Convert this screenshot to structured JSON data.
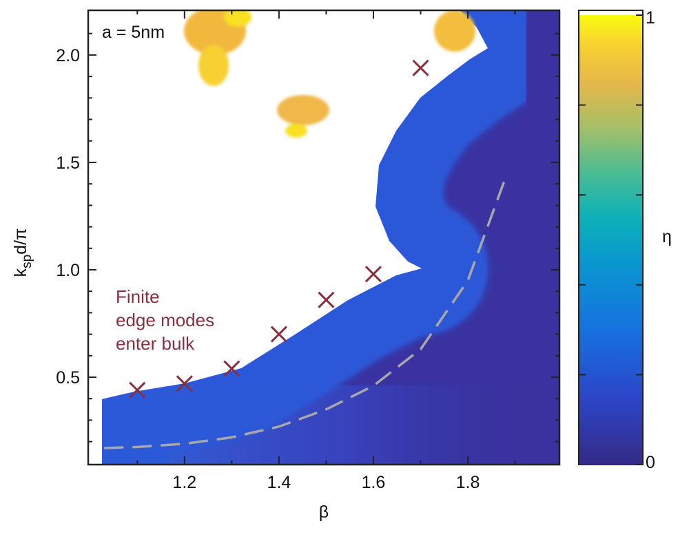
{
  "chart_data": {
    "type": "heatmap",
    "xlabel": "β",
    "ylabel": [
      "k",
      "sp",
      "d/π"
    ],
    "xlim": [
      0.996,
      1.994
    ],
    "ylim": [
      0.093,
      2.208
    ],
    "xticks": [
      1.2,
      1.4,
      1.6,
      1.8
    ],
    "xminorticks": [
      1.1,
      1.3,
      1.5,
      1.7,
      1.9
    ],
    "yticks": [
      0.5,
      1.0,
      1.5,
      2.0
    ],
    "yminorticks": [
      0.2,
      0.3,
      0.4,
      0.6,
      0.7,
      0.8,
      0.9,
      1.1,
      1.2,
      1.3,
      1.4,
      1.6,
      1.7,
      1.8,
      1.9,
      2.1
    ],
    "colorbar_label": "η",
    "clim": [
      0,
      1
    ],
    "cticks": [
      0,
      1
    ],
    "cminorticks": [
      0.2,
      0.4,
      0.6,
      0.8
    ],
    "annotations": [
      {
        "text": "a = 5nm"
      },
      {
        "lines": [
          "Finite",
          "edge modes",
          "enter bulk"
        ],
        "color": "#8a2e3e"
      }
    ],
    "series": [
      {
        "kind": "markers",
        "color": "#8a2e3e",
        "x": [
          1.1,
          1.2,
          1.3,
          1.4,
          1.5,
          1.6,
          1.7
        ],
        "values": [
          0.44,
          0.47,
          0.54,
          0.7,
          0.86,
          0.98,
          1.94
        ]
      },
      {
        "kind": "dashed-line",
        "color": "#a8a8a8",
        "x": [
          1.03,
          1.1,
          1.2,
          1.3,
          1.4,
          1.5,
          1.6,
          1.7,
          1.8,
          1.88
        ],
        "values": [
          0.17,
          0.175,
          0.19,
          0.22,
          0.27,
          0.35,
          0.46,
          0.63,
          0.95,
          1.43
        ]
      }
    ]
  }
}
